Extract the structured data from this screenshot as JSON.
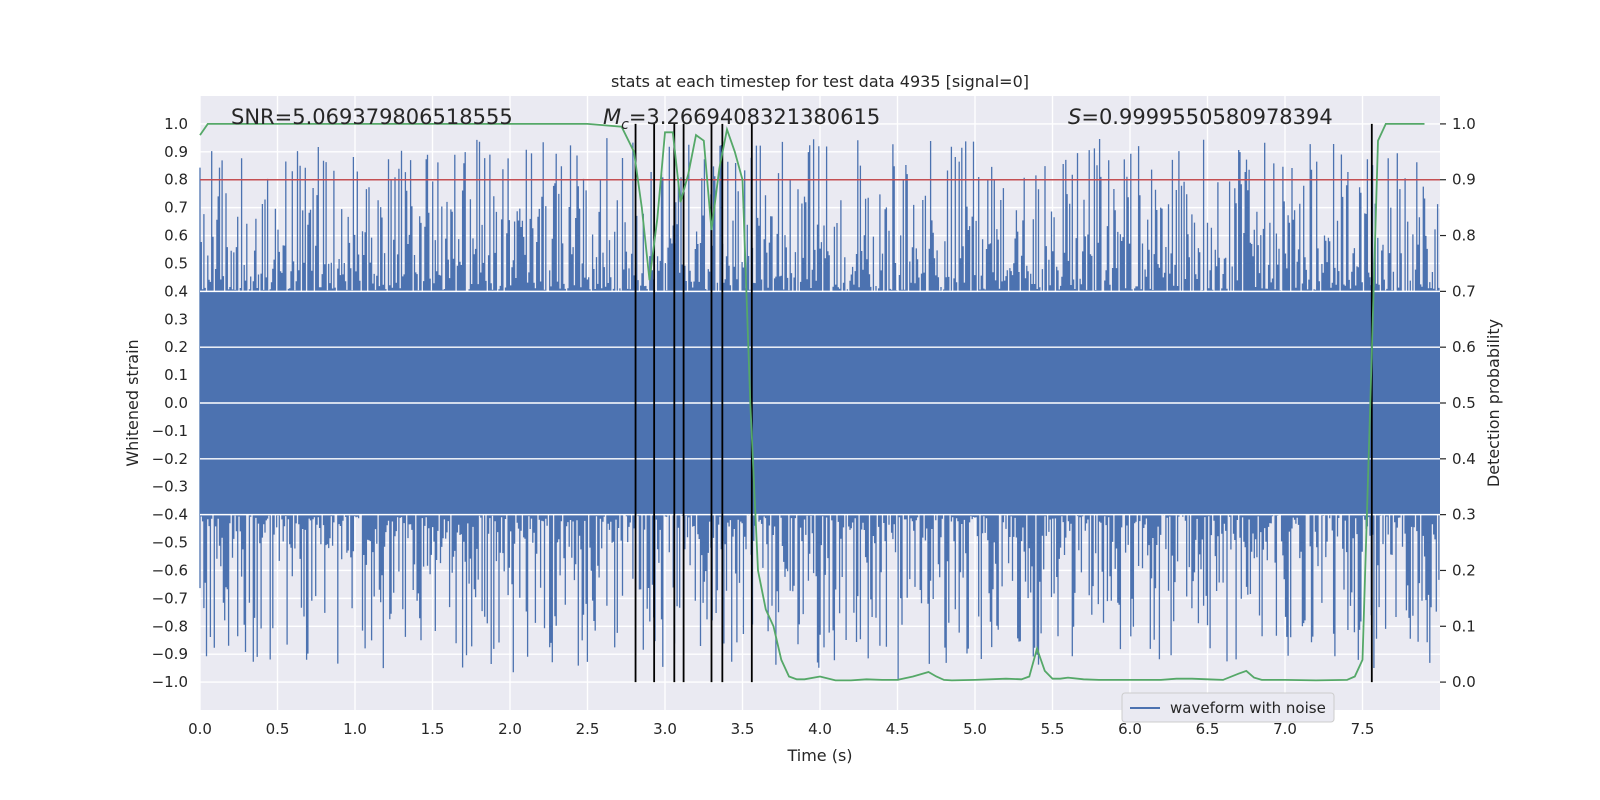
{
  "chart_data": {
    "type": "line",
    "title": "stats at each timestep for test data 4935 [signal=0]",
    "xlabel": "Time (s)",
    "ylabel_left": "Whitened strain",
    "ylabel_right": "Detection probability",
    "xlim": [
      0.0,
      8.0
    ],
    "ylim_left": [
      -1.1,
      1.1
    ],
    "ylim_right": [
      -0.05,
      1.05
    ],
    "x_ticks": [
      "0.0",
      "0.5",
      "1.0",
      "1.5",
      "2.0",
      "2.5",
      "3.0",
      "3.5",
      "4.0",
      "4.5",
      "5.0",
      "5.5",
      "6.0",
      "6.5",
      "7.0",
      "7.5"
    ],
    "y_ticks_left": [
      "1.0",
      "0.9",
      "0.8",
      "0.7",
      "0.6",
      "0.5",
      "0.4",
      "0.3",
      "0.2",
      "0.1",
      "0.0",
      "−0.1",
      "−0.2",
      "−0.3",
      "−0.4",
      "−0.5",
      "−0.6",
      "−0.7",
      "−0.8",
      "−0.9",
      "−1.0"
    ],
    "y_ticks_right": [
      "1.0",
      "0.9",
      "0.8",
      "0.7",
      "0.6",
      "0.5",
      "0.4",
      "0.3",
      "0.2",
      "0.1",
      "0.0"
    ],
    "grid": true,
    "legend_position": "bottom-right",
    "annotations": {
      "snr": "SNR=5.069379806518555",
      "mc_symbol": "M",
      "mc_sub": "c",
      "mc_value": "=3.2669408321380615",
      "s_symbol": "S",
      "s_value": "=0.9999550580978394"
    },
    "threshold": {
      "probability": 0.9,
      "color": "#c44e52"
    },
    "vertical_markers_s": [
      2.81,
      2.93,
      3.06,
      3.12,
      3.3,
      3.37,
      3.56,
      7.56
    ],
    "series": [
      {
        "name": "waveform with noise",
        "kind": "noise",
        "color": "#4c72b0",
        "band_amplitude": 0.4
      },
      {
        "kind": "probability",
        "color": "#55a868",
        "x": [
          0.0,
          0.05,
          0.5,
          1.0,
          1.5,
          2.0,
          2.5,
          2.72,
          2.8,
          2.85,
          2.9,
          2.95,
          3.0,
          3.05,
          3.1,
          3.15,
          3.2,
          3.25,
          3.3,
          3.35,
          3.4,
          3.45,
          3.5,
          3.55,
          3.6,
          3.65,
          3.7,
          3.75,
          3.8,
          3.85,
          3.9,
          4.0,
          4.1,
          4.2,
          4.3,
          4.4,
          4.5,
          4.6,
          4.7,
          4.75,
          4.8,
          4.85,
          5.0,
          5.2,
          5.3,
          5.35,
          5.4,
          5.45,
          5.5,
          5.55,
          5.6,
          5.7,
          5.8,
          6.0,
          6.2,
          6.3,
          6.4,
          6.5,
          6.6,
          6.7,
          6.75,
          6.8,
          6.85,
          7.0,
          7.2,
          7.4,
          7.45,
          7.5,
          7.55,
          7.6,
          7.65,
          7.7,
          7.75,
          7.8,
          7.9
        ],
        "y": [
          0.98,
          1.0,
          1.0,
          1.0,
          1.0,
          1.0,
          1.0,
          0.995,
          0.95,
          0.85,
          0.72,
          0.83,
          0.985,
          0.985,
          0.86,
          0.91,
          0.98,
          0.97,
          0.81,
          0.92,
          0.99,
          0.95,
          0.9,
          0.5,
          0.2,
          0.13,
          0.1,
          0.04,
          0.01,
          0.005,
          0.005,
          0.01,
          0.003,
          0.003,
          0.005,
          0.004,
          0.004,
          0.01,
          0.018,
          0.01,
          0.004,
          0.003,
          0.004,
          0.006,
          0.005,
          0.01,
          0.06,
          0.02,
          0.006,
          0.006,
          0.008,
          0.005,
          0.004,
          0.004,
          0.004,
          0.006,
          0.006,
          0.005,
          0.004,
          0.015,
          0.02,
          0.008,
          0.004,
          0.004,
          0.003,
          0.004,
          0.01,
          0.04,
          0.5,
          0.97,
          1.0,
          1.0,
          1.0,
          1.0,
          1.0
        ]
      }
    ]
  }
}
